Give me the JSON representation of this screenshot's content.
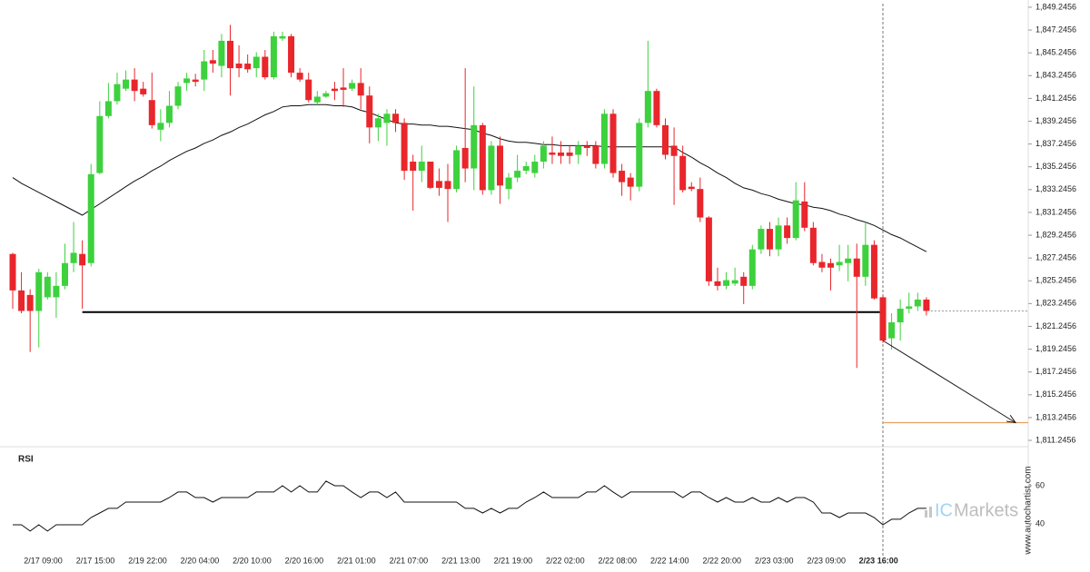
{
  "chart_data": [
    {
      "type": "candlestick",
      "categories": [
        null,
        null,
        null,
        null,
        "2/17 09:00",
        null,
        null,
        null,
        null,
        null,
        "2/17 15:00",
        null,
        null,
        null,
        null,
        null,
        "2/19 22:00",
        null,
        null,
        null,
        null,
        null,
        "2/20 04:00",
        null,
        null,
        null,
        null,
        null,
        "2/20 10:00",
        null,
        null,
        null,
        null,
        null,
        "2/20 16:00",
        null,
        null,
        null,
        null,
        null,
        "2/21 01:00",
        null,
        null,
        null,
        null,
        null,
        "2/21 07:00",
        null,
        null,
        null,
        null,
        null,
        "2/21 13:00",
        null,
        null,
        null,
        null,
        null,
        "2/21 19:00",
        null,
        null,
        null,
        null,
        null,
        "2/22 02:00",
        null,
        null,
        null,
        null,
        null,
        "2/22 08:00",
        null,
        null,
        null,
        null,
        null,
        "2/22 14:00",
        null,
        null,
        null,
        null,
        null,
        "2/22 20:00",
        null,
        null,
        null,
        null,
        null,
        "2/23 03:00",
        null,
        null,
        null,
        null,
        null,
        "2/23 09:00",
        null,
        null,
        null,
        null,
        null,
        "2/23 16:00",
        null,
        null,
        null,
        null,
        null
      ],
      "open": [
        1827.6,
        1824.4,
        1824.0,
        1822.6,
        1823.8,
        1823.8,
        1824.8,
        1826.8,
        1827.6,
        1826.8,
        1834.7,
        1839.7,
        1841.0,
        1842.1,
        1842.9,
        1842.1,
        1841.1,
        1838.5,
        1839.1,
        1840.6,
        1842.6,
        1842.9,
        1842.9,
        1844.6,
        1844.1,
        1846.3,
        1844.3,
        1844.3,
        1843.9,
        1844.9,
        1843.1,
        1846.5,
        1846.7,
        1843.5,
        1842.9,
        1840.9,
        1841.4,
        1842.1,
        1842.2,
        1842.1,
        1842.6,
        1841.5,
        1838.7,
        1839.1,
        1839.9,
        1839.1,
        1835.7,
        1834.9,
        1835.7,
        1834.0,
        1834.0,
        1833.3,
        1836.9,
        1835.1,
        1838.9,
        1833.2,
        1837.1,
        1833.3,
        1834.3,
        1834.9,
        1834.7,
        1835.7,
        1836.5,
        1836.5,
        1836.5,
        1836.3,
        1837.1,
        1837.1,
        1835.5,
        1839.9,
        1834.9,
        1834.3,
        1833.5,
        1839.1,
        1841.9,
        1838.9,
        1837.1,
        1836.2,
        1833.5,
        1833.3,
        1830.8,
        1825.2,
        1824.8,
        1825.0,
        1825.6,
        1824.8,
        1828.0,
        1829.8,
        1828.0,
        1830.1,
        1829.0,
        1832.2,
        1829.9,
        1826.9,
        1826.8,
        1826.6,
        1826.8,
        1827.2,
        1825.6,
        1828.4,
        1823.8,
        1820.2,
        1821.6,
        1822.8,
        1823.0,
        1823.6
      ],
      "high": [
        1827.7,
        1826.0,
        1824.5,
        1826.3,
        1826.0,
        1826.0,
        1828.5,
        1830.4,
        1828.8,
        1835.5,
        1841.0,
        1842.6,
        1843.5,
        1843.7,
        1843.9,
        1842.7,
        1843.5,
        1840.3,
        1841.9,
        1842.7,
        1843.5,
        1843.4,
        1845.5,
        1845.5,
        1846.9,
        1847.7,
        1845.9,
        1845.1,
        1845.3,
        1845.5,
        1847.1,
        1847.1,
        1846.9,
        1843.9,
        1843.5,
        1841.9,
        1841.9,
        1842.7,
        1843.9,
        1842.9,
        1843.9,
        1842.3,
        1839.9,
        1840.3,
        1840.3,
        1839.5,
        1836.3,
        1837.1,
        1835.7,
        1835.1,
        1835.5,
        1837.1,
        1843.9,
        1842.3,
        1839.1,
        1837.5,
        1837.9,
        1834.7,
        1836.3,
        1835.7,
        1836.3,
        1837.5,
        1837.9,
        1837.5,
        1837.1,
        1837.5,
        1837.5,
        1837.5,
        1840.3,
        1840.3,
        1835.5,
        1834.7,
        1839.5,
        1846.3,
        1842.1,
        1839.5,
        1838.7,
        1837.1,
        1833.9,
        1834.3,
        1830.9,
        1826.4,
        1826.0,
        1826.4,
        1826.0,
        1828.4,
        1830.1,
        1830.4,
        1830.8,
        1830.8,
        1833.9,
        1833.9,
        1830.4,
        1827.6,
        1827.2,
        1828.4,
        1828.4,
        1828.5,
        1830.4,
        1828.8,
        1824.0,
        1822.4,
        1823.6,
        1824.2,
        1824.2,
        1823.8
      ],
      "low": [
        1822.8,
        1822.4,
        1819.0,
        1819.4,
        1823.6,
        1822.0,
        1824.5,
        1826.0,
        1822.8,
        1826.5,
        1834.6,
        1839.5,
        1840.7,
        1841.9,
        1841.0,
        1841.4,
        1838.6,
        1837.5,
        1838.7,
        1840.3,
        1841.9,
        1842.3,
        1841.9,
        1843.5,
        1843.1,
        1841.5,
        1843.1,
        1843.5,
        1843.1,
        1842.9,
        1842.9,
        1846.3,
        1843.1,
        1842.7,
        1840.9,
        1840.7,
        1841.3,
        1841.1,
        1840.5,
        1841.9,
        1840.3,
        1837.3,
        1837.5,
        1837.1,
        1838.3,
        1834.1,
        1831.4,
        1833.9,
        1833.3,
        1832.7,
        1830.4,
        1833.0,
        1833.9,
        1833.2,
        1832.8,
        1832.8,
        1832.0,
        1832.4,
        1833.9,
        1834.6,
        1834.3,
        1835.1,
        1835.5,
        1835.5,
        1835.5,
        1835.5,
        1836.2,
        1835.1,
        1835.1,
        1834.3,
        1832.7,
        1832.3,
        1833.1,
        1838.7,
        1838.7,
        1835.9,
        1831.9,
        1833.0,
        1833.1,
        1830.4,
        1824.8,
        1824.4,
        1824.5,
        1824.8,
        1823.2,
        1824.5,
        1827.6,
        1827.4,
        1827.4,
        1828.5,
        1828.8,
        1829.6,
        1826.6,
        1826.0,
        1824.4,
        1826.1,
        1825.2,
        1817.6,
        1824.8,
        1823.6,
        1819.8,
        1819.2,
        1820.0,
        1822.4,
        1822.6,
        1822.2
      ],
      "close": [
        1824.4,
        1822.6,
        1822.6,
        1826.0,
        1825.6,
        1824.8,
        1826.8,
        1827.7,
        1826.6,
        1834.6,
        1839.7,
        1841.0,
        1842.5,
        1842.9,
        1841.9,
        1841.6,
        1838.9,
        1839.1,
        1840.6,
        1842.3,
        1843.0,
        1842.7,
        1844.5,
        1844.3,
        1846.3,
        1843.9,
        1843.9,
        1843.8,
        1844.9,
        1843.1,
        1846.7,
        1846.7,
        1843.5,
        1842.9,
        1841.1,
        1841.4,
        1841.7,
        1841.9,
        1842.0,
        1842.6,
        1841.5,
        1838.7,
        1839.5,
        1839.9,
        1839.1,
        1834.9,
        1834.9,
        1835.7,
        1833.4,
        1833.4,
        1833.3,
        1836.7,
        1835.1,
        1838.9,
        1833.2,
        1837.1,
        1833.6,
        1834.3,
        1834.9,
        1835.3,
        1835.7,
        1837.1,
        1836.3,
        1836.2,
        1836.2,
        1837.1,
        1836.9,
        1835.5,
        1839.9,
        1834.7,
        1833.9,
        1833.5,
        1839.1,
        1841.9,
        1838.9,
        1836.3,
        1836.2,
        1833.2,
        1833.3,
        1830.8,
        1825.2,
        1824.8,
        1825.3,
        1825.3,
        1824.8,
        1828.0,
        1829.8,
        1828.0,
        1830.1,
        1829.0,
        1832.3,
        1829.9,
        1826.8,
        1826.4,
        1826.4,
        1826.9,
        1827.2,
        1825.6,
        1828.4,
        1823.7,
        1820.0,
        1821.6,
        1822.8,
        1823.0,
        1823.6,
        1822.6
      ],
      "ma": [
        1834.3,
        1833.8,
        1833.4,
        1833.0,
        1832.6,
        1832.2,
        1831.8,
        1831.4,
        1831.0,
        1831.5,
        1832.0,
        1832.5,
        1833.0,
        1833.5,
        1834.0,
        1834.4,
        1834.9,
        1835.3,
        1835.8,
        1836.2,
        1836.6,
        1836.9,
        1837.3,
        1837.6,
        1838.0,
        1838.3,
        1838.7,
        1839.0,
        1839.4,
        1839.8,
        1840.1,
        1840.5,
        1840.6,
        1840.6,
        1840.7,
        1840.7,
        1840.7,
        1840.6,
        1840.6,
        1840.5,
        1840.2,
        1840.0,
        1839.7,
        1839.4,
        1839.1,
        1839.0,
        1839.0,
        1838.9,
        1838.9,
        1838.8,
        1838.8,
        1838.7,
        1838.6,
        1838.5,
        1838.2,
        1838.0,
        1837.7,
        1837.5,
        1837.4,
        1837.4,
        1837.3,
        1837.2,
        1837.2,
        1837.1,
        1837.1,
        1837.1,
        1837.1,
        1837.1,
        1837.0,
        1837.0,
        1837.0,
        1837.0,
        1837.0,
        1837.0,
        1837.0,
        1837.0,
        1837.0,
        1836.5,
        1836.1,
        1835.6,
        1835.2,
        1834.7,
        1834.3,
        1833.8,
        1833.4,
        1833.2,
        1832.9,
        1832.7,
        1832.4,
        1832.2,
        1832.0,
        1831.9,
        1831.7,
        1831.6,
        1831.4,
        1831.1,
        1830.9,
        1830.6,
        1830.4,
        1830.1,
        1829.7,
        1829.3,
        1829.0,
        1828.6,
        1828.2,
        1827.8
      ],
      "up_color": "#3dd13d",
      "down_color": "#e8262b",
      "ma_color": "#111111",
      "support_level": 1822.5,
      "support_color": "#000000",
      "forecast": {
        "from": 1820.0,
        "to": 1812.8,
        "color": "#1a1a1a",
        "target_color": "#e8a060"
      },
      "ylim": [
        1810.69,
        1849.88
      ],
      "yticks": [
        {
          "value": 1849.2456,
          "label": "1,849.2456"
        },
        {
          "value": 1847.2456,
          "label": "1,847.2456"
        },
        {
          "value": 1845.2456,
          "label": "1,845.2456"
        },
        {
          "value": 1843.2456,
          "label": "1,843.2456"
        },
        {
          "value": 1841.2456,
          "label": "1,841.2456"
        },
        {
          "value": 1839.2456,
          "label": "1,839.2456"
        },
        {
          "value": 1837.2456,
          "label": "1,837.2456"
        },
        {
          "value": 1835.2456,
          "label": "1,835.2456"
        },
        {
          "value": 1833.2456,
          "label": "1,833.2456"
        },
        {
          "value": 1831.2456,
          "label": "1,831.2456"
        },
        {
          "value": 1829.2456,
          "label": "1,829.2456"
        },
        {
          "value": 1827.2456,
          "label": "1,827.2456"
        },
        {
          "value": 1825.2456,
          "label": "1,825.2456"
        },
        {
          "value": 1823.2456,
          "label": "1,823.2456"
        },
        {
          "value": 1821.2456,
          "label": "1,821.2456"
        },
        {
          "value": 1819.2456,
          "label": "1,819.2456"
        },
        {
          "value": 1817.2456,
          "label": "1,817.2456"
        },
        {
          "value": 1815.2456,
          "label": "1,815.2456"
        },
        {
          "value": 1813.2456,
          "label": "1,813.2456"
        },
        {
          "value": 1811.2456,
          "label": "1,811.2456"
        }
      ],
      "grid": false
    },
    {
      "type": "line",
      "title": "RSI",
      "color": "#111111",
      "values": [
        39.5,
        39.5,
        36.2,
        39.5,
        36.2,
        39.5,
        39.5,
        39.5,
        39.5,
        43.3,
        45.7,
        48.1,
        48.1,
        51.4,
        51.4,
        51.4,
        51.4,
        51.4,
        53.8,
        56.7,
        56.7,
        53.8,
        53.8,
        51.4,
        53.8,
        53.8,
        53.8,
        53.8,
        56.7,
        56.7,
        56.7,
        60,
        56.7,
        60,
        56.7,
        56.7,
        62.4,
        60,
        60,
        56.7,
        53.8,
        56.7,
        56.7,
        53.8,
        56.7,
        51.4,
        51.4,
        51.4,
        51.4,
        51.4,
        51.4,
        51.4,
        48.1,
        48.1,
        45.7,
        48.1,
        45.7,
        48.1,
        48.1,
        51.4,
        53.8,
        56.7,
        53.8,
        53.8,
        53.8,
        53.8,
        56.7,
        56.7,
        60,
        56.7,
        53.8,
        56.7,
        56.7,
        56.7,
        56.7,
        56.7,
        56.7,
        53.8,
        56.7,
        56.7,
        53.8,
        51.4,
        53.8,
        51.4,
        51.4,
        53.8,
        51.4,
        51.4,
        53.8,
        51.4,
        53.8,
        53.8,
        51.4,
        45.7,
        45.7,
        43.3,
        45.7,
        45.7,
        45.7,
        43.3,
        39.5,
        42.4,
        42.4,
        45.7,
        48.1,
        48.1
      ],
      "ylim": [
        23.3,
        77.6
      ],
      "yticks": [
        60,
        40
      ],
      "grid": false
    }
  ],
  "branding": {
    "logo_a": "IC",
    "logo_b": "Markets",
    "site": "www.autochartist.com"
  }
}
